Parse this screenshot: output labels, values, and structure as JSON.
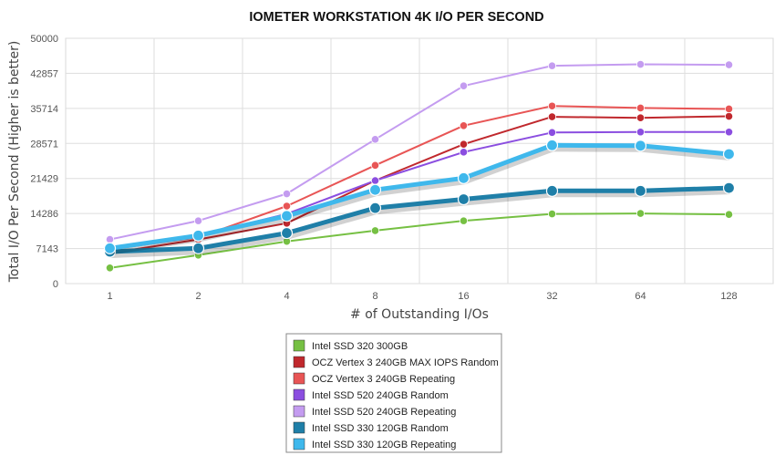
{
  "chart_data": {
    "type": "line",
    "title": "IOMETER WORKSTATION 4K I/O PER SECOND",
    "xlabel": "# of Outstanding I/Os",
    "ylabel": "Total I/O Per Second (Higher is better)",
    "categories": [
      "1",
      "2",
      "4",
      "8",
      "16",
      "32",
      "64",
      "128"
    ],
    "yticks": [
      "0",
      "7143",
      "14286",
      "21429",
      "28571",
      "35714",
      "42857",
      "50000"
    ],
    "ylim": [
      0,
      50000
    ],
    "grid": true,
    "legend_position": "bottom-center",
    "series": [
      {
        "name": "Intel SSD 320 300GB",
        "color": "#76c043",
        "emphasis": false,
        "values": [
          3200,
          5800,
          8600,
          10800,
          12800,
          14200,
          14300,
          14100
        ]
      },
      {
        "name": "OCZ Vertex 3 240GB MAX IOPS Random",
        "color": "#c0282d",
        "emphasis": false,
        "values": [
          6200,
          9000,
          12300,
          21000,
          28400,
          34000,
          33800,
          34100
        ]
      },
      {
        "name": "OCZ Vertex 3 240GB Repeating",
        "color": "#e85555",
        "emphasis": false,
        "values": [
          7000,
          9400,
          15800,
          24100,
          32200,
          36200,
          35800,
          35600
        ]
      },
      {
        "name": "Intel SSD 520 240GB Random",
        "color": "#8b4ee0",
        "emphasis": false,
        "values": [
          7200,
          9800,
          14200,
          21000,
          26800,
          30800,
          30900,
          30900
        ]
      },
      {
        "name": "Intel SSD 520 240GB Repeating",
        "color": "#c49cf0",
        "emphasis": false,
        "values": [
          9000,
          12800,
          18300,
          29400,
          40300,
          44400,
          44700,
          44600
        ]
      },
      {
        "name": "Intel SSD 330 120GB Random",
        "color": "#1f7fa8",
        "emphasis": true,
        "values": [
          6500,
          7200,
          10300,
          15400,
          17200,
          18900,
          18900,
          19500
        ]
      },
      {
        "name": "Intel SSD 330 120GB Repeating",
        "color": "#3fb8ec",
        "emphasis": true,
        "values": [
          7200,
          9800,
          13800,
          19100,
          21500,
          28200,
          28100,
          26400
        ]
      }
    ]
  }
}
